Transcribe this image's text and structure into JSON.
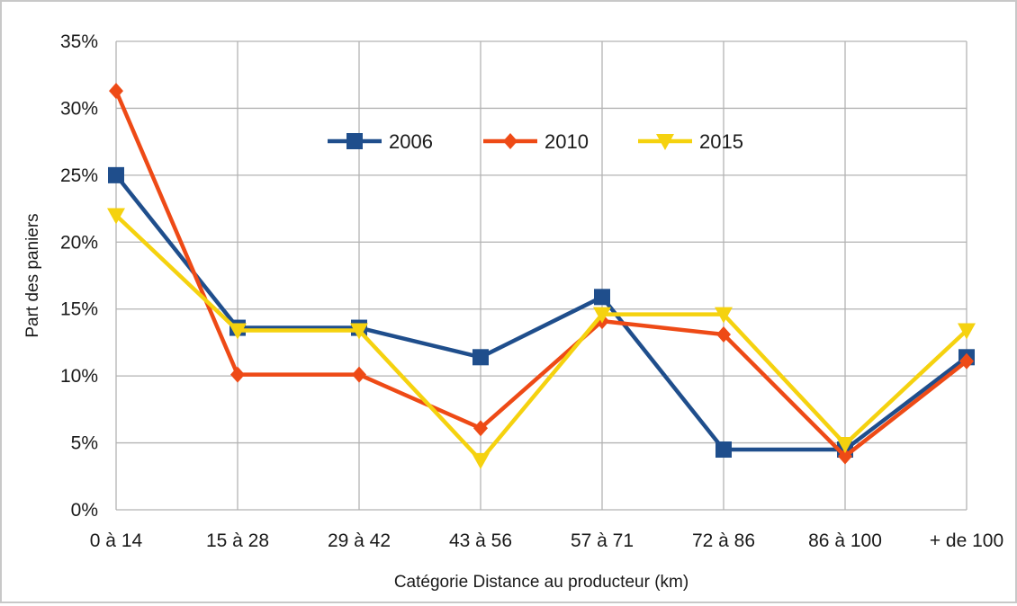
{
  "chart_data": {
    "type": "line",
    "title": "",
    "xlabel": "Catégorie Distance au producteur (km)",
    "ylabel": "Part des paniers",
    "categories": [
      "0 à 14",
      "15 à 28",
      "29 à 42",
      "43 à 56",
      "57 à 71",
      "72 à 86",
      "86 à 100",
      "+ de 100"
    ],
    "ylim": [
      0,
      35
    ],
    "yticks": [
      "0%",
      "5%",
      "10%",
      "15%",
      "20%",
      "25%",
      "30%",
      "35%"
    ],
    "grid": true,
    "legend_position": "top-center",
    "series": [
      {
        "name": "2006",
        "color": "#1f4e8c",
        "marker": "square",
        "values": [
          25.0,
          13.6,
          13.6,
          11.4,
          15.9,
          4.5,
          4.5,
          11.4
        ]
      },
      {
        "name": "2010",
        "color": "#ee4a16",
        "marker": "diamond",
        "values": [
          31.3,
          10.1,
          10.1,
          6.1,
          14.1,
          13.1,
          4.0,
          11.1
        ]
      },
      {
        "name": "2015",
        "color": "#f5d20f",
        "marker": "triangle-down",
        "values": [
          22.0,
          13.4,
          13.4,
          3.7,
          14.6,
          14.6,
          4.9,
          13.4
        ]
      }
    ]
  }
}
